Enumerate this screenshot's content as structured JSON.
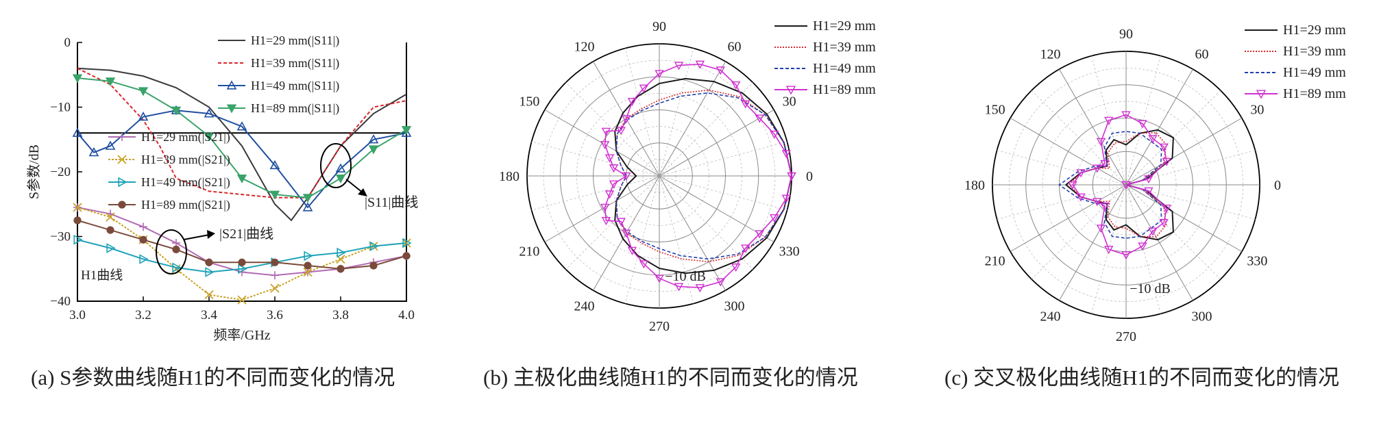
{
  "captions": {
    "a": "(a) S参数曲线随H1的不同而变化的情况",
    "b": "(b) 主极化曲线随H1的不同而变化的情况",
    "c": "(c) 交叉极化曲线随H1的不同而变化的情况"
  },
  "colors": {
    "h29": "#3a3a3a",
    "h39": "#d8262b",
    "h49": "#1f4fa0",
    "h89": "#3aa36a",
    "s21_29": "#b06ab3",
    "s21_39": "#c9a227",
    "s21_49": "#1fa3b8",
    "s21_89": "#7a4a3a",
    "polar89": "#d22fd2"
  },
  "chart_data": [
    {
      "type": "line",
      "xlabel": "频率/GHz",
      "ylabel": "S参数/dB",
      "xlim": [
        3.0,
        4.0
      ],
      "ylim": [
        -40,
        0
      ],
      "xticks": [
        "3.0",
        "3.2",
        "3.4",
        "3.6",
        "3.8",
        "4.0"
      ],
      "yticks": [
        "0",
        "−10",
        "−20",
        "−30",
        "−40"
      ],
      "reference_line": -14,
      "annotations": [
        "|S11|曲线",
        "|S21|曲线",
        "H1曲线"
      ],
      "legend_s11": [
        "H1=29 mm(|S11|)",
        "H1=39 mm(|S11|)",
        "H1=49 mm(|S11|)",
        "H1=89 mm(|S11|)"
      ],
      "legend_s21": [
        "H1=29 mm(|S21|)",
        "H1=39 mm(|S21|)",
        "H1=49 mm(|S21|)",
        "H1=89 mm(|S21|)"
      ],
      "series": [
        {
          "name": "H1=29 mm(|S11|)",
          "color": "#3a3a3a",
          "marker": "none",
          "dash": "",
          "x": [
            3.0,
            3.1,
            3.2,
            3.3,
            3.4,
            3.5,
            3.6,
            3.65,
            3.7,
            3.8,
            3.9,
            4.0
          ],
          "y": [
            -4,
            -4.3,
            -5.2,
            -7,
            -10,
            -16,
            -25,
            -27.5,
            -24,
            -16,
            -11,
            -8
          ]
        },
        {
          "name": "H1=39 mm(|S11|)",
          "color": "#d8262b",
          "marker": "none",
          "dash": "5 3",
          "x": [
            3.0,
            3.1,
            3.2,
            3.25,
            3.3,
            3.4,
            3.5,
            3.6,
            3.7,
            3.8,
            3.9,
            4.0
          ],
          "y": [
            -4,
            -6.5,
            -12,
            -16,
            -21,
            -23,
            -23.5,
            -24,
            -24,
            -16,
            -10,
            -9
          ]
        },
        {
          "name": "H1=49 mm(|S11|)",
          "color": "#1f4fa0",
          "marker": "triangle-up",
          "dash": "",
          "x": [
            3.0,
            3.05,
            3.1,
            3.2,
            3.3,
            3.4,
            3.5,
            3.6,
            3.7,
            3.8,
            3.9,
            4.0
          ],
          "y": [
            -14,
            -17,
            -16,
            -11.5,
            -10.5,
            -11,
            -13,
            -19,
            -25.5,
            -19.5,
            -15,
            -14
          ]
        },
        {
          "name": "H1=89 mm(|S11|)",
          "color": "#3aa36a",
          "marker": "triangle-down",
          "dash": "",
          "x": [
            3.0,
            3.1,
            3.2,
            3.3,
            3.4,
            3.5,
            3.6,
            3.7,
            3.8,
            3.9,
            4.0
          ],
          "y": [
            -5.5,
            -6,
            -7.5,
            -10.5,
            -14.5,
            -21,
            -23.5,
            -24,
            -21,
            -16.5,
            -13.5
          ]
        },
        {
          "name": "H1=29 mm(|S21|)",
          "color": "#b06ab3",
          "marker": "plus",
          "dash": "",
          "x": [
            3.0,
            3.1,
            3.2,
            3.3,
            3.4,
            3.5,
            3.6,
            3.7,
            3.8,
            3.9,
            4.0
          ],
          "y": [
            -25.5,
            -26.5,
            -28.5,
            -31,
            -34,
            -35.5,
            -36,
            -35.5,
            -35,
            -34,
            -33
          ]
        },
        {
          "name": "H1=39 mm(|S21|)",
          "color": "#c9a227",
          "marker": "cross",
          "dash": "3 2",
          "x": [
            3.0,
            3.1,
            3.2,
            3.3,
            3.4,
            3.5,
            3.6,
            3.7,
            3.8,
            3.9,
            4.0
          ],
          "y": [
            -25.5,
            -27,
            -30.5,
            -35,
            -39,
            -39.8,
            -38,
            -35.5,
            -33.5,
            -31.5,
            -31
          ]
        },
        {
          "name": "H1=49 mm(|S21|)",
          "color": "#1fa3b8",
          "marker": "triangle-right",
          "dash": "",
          "x": [
            3.0,
            3.1,
            3.2,
            3.3,
            3.4,
            3.5,
            3.6,
            3.7,
            3.8,
            3.9,
            4.0
          ],
          "y": [
            -30.5,
            -31.8,
            -33.5,
            -34.8,
            -35.5,
            -35,
            -34,
            -33,
            -32.5,
            -31.5,
            -31
          ]
        },
        {
          "name": "H1=89 mm(|S21|)",
          "color": "#7a4a3a",
          "marker": "circle",
          "dash": "",
          "x": [
            3.0,
            3.1,
            3.2,
            3.3,
            3.4,
            3.5,
            3.6,
            3.7,
            3.8,
            3.9,
            4.0
          ],
          "y": [
            -27.5,
            -29,
            -30.5,
            -32,
            -34,
            -34,
            -34,
            -34.5,
            -35,
            -34.5,
            -33
          ]
        }
      ]
    },
    {
      "type": "polar",
      "rlim": [
        -40,
        0
      ],
      "angle_ticks": [
        "0",
        "30",
        "60",
        "90",
        "120",
        "150",
        "180",
        "210",
        "240",
        "270",
        "300",
        "330"
      ],
      "rlabel": "−10 dB",
      "legend": [
        "H1=29 mm",
        "H1=39 mm",
        "H1=49 mm",
        "H1=89 mm"
      ],
      "series": [
        {
          "name": "H1=29 mm",
          "color": "#1a1a1a",
          "dash": "",
          "marker": "none",
          "theta": [
            0,
            15,
            30,
            45,
            60,
            75,
            90,
            105,
            120,
            135,
            150,
            165,
            180,
            195,
            210,
            225,
            240,
            255,
            270,
            285,
            300,
            315,
            330,
            345,
            360
          ],
          "r": [
            0,
            -1,
            -2.5,
            -4.5,
            -7,
            -9.5,
            -12,
            -15,
            -18,
            -21,
            -25,
            -30,
            -33,
            -30,
            -25,
            -21,
            -18,
            -15,
            -12,
            -9.5,
            -7,
            -4.5,
            -2.5,
            -1,
            0
          ]
        },
        {
          "name": "H1=39 mm",
          "color": "#d8262b",
          "dash": "2 2",
          "marker": "none",
          "theta": [
            0,
            15,
            30,
            45,
            60,
            75,
            90,
            105,
            120,
            135,
            150,
            165,
            180,
            195,
            210,
            225,
            240,
            255,
            270,
            285,
            300,
            315,
            330,
            345,
            360
          ],
          "r": [
            0,
            -1,
            -3,
            -6,
            -10,
            -14,
            -17,
            -19,
            -20,
            -22,
            -25,
            -28,
            -30,
            -28,
            -25,
            -22,
            -20,
            -19,
            -17,
            -14,
            -10,
            -6,
            -3,
            -1,
            0
          ]
        },
        {
          "name": "H1=49 mm",
          "color": "#1f3fb0",
          "dash": "5 3",
          "marker": "none",
          "theta": [
            0,
            15,
            30,
            45,
            60,
            75,
            90,
            105,
            120,
            135,
            150,
            165,
            180,
            195,
            210,
            225,
            240,
            255,
            270,
            285,
            300,
            315,
            330,
            345,
            360
          ],
          "r": [
            0,
            -1,
            -3,
            -6.5,
            -11,
            -15,
            -18,
            -19.5,
            -20.5,
            -22,
            -25,
            -28,
            -30,
            -28,
            -25,
            -22,
            -20.5,
            -19.5,
            -18,
            -15,
            -11,
            -6.5,
            -3,
            -1,
            0
          ]
        },
        {
          "name": "H1=89 mm",
          "color": "#d22fd2",
          "dash": "",
          "marker": "triangle-down",
          "theta": [
            0,
            10,
            20,
            30,
            40,
            50,
            60,
            70,
            80,
            90,
            100,
            110,
            120,
            130,
            140,
            150,
            160,
            170,
            180,
            190,
            200,
            210,
            220,
            230,
            240,
            250,
            260,
            270,
            280,
            290,
            300,
            310,
            320,
            330,
            340,
            350,
            360
          ],
          "r": [
            0,
            -1,
            -3,
            -5,
            -6,
            -4,
            -3,
            -4,
            -6,
            -9,
            -13,
            -16,
            -20,
            -22,
            -19,
            -21,
            -24,
            -26,
            -30,
            -26,
            -24,
            -21,
            -19,
            -22,
            -20,
            -16,
            -13,
            -9,
            -6,
            -4,
            -3,
            -4,
            -6,
            -5,
            -3,
            -1,
            0
          ]
        }
      ]
    },
    {
      "type": "polar",
      "rlim": [
        -40,
        0
      ],
      "angle_ticks": [
        "0",
        "30",
        "60",
        "90",
        "120",
        "150",
        "180",
        "210",
        "240",
        "270",
        "300",
        "330"
      ],
      "rlabel": "−10 dB",
      "legend": [
        "H1=29 mm",
        "H1=39 mm",
        "H1=49 mm",
        "H1=89 mm"
      ],
      "series": [
        {
          "name": "H1=29 mm",
          "color": "#1a1a1a",
          "dash": "",
          "marker": "none",
          "theta": [
            0,
            15,
            30,
            45,
            60,
            75,
            90,
            105,
            120,
            135,
            150,
            165,
            180,
            195,
            210,
            225,
            240,
            255,
            270,
            285,
            300,
            315,
            330,
            345,
            360
          ],
          "r": [
            -40,
            -34,
            -24,
            -20,
            -21,
            -24,
            -28,
            -26,
            -28,
            -32,
            -30,
            -26,
            -22,
            -26,
            -30,
            -32,
            -28,
            -26,
            -28,
            -24,
            -21,
            -20,
            -24,
            -34,
            -40
          ]
        },
        {
          "name": "H1=39 mm",
          "color": "#d8262b",
          "dash": "2 2",
          "marker": "none",
          "theta": [
            0,
            15,
            30,
            45,
            60,
            75,
            90,
            105,
            120,
            135,
            150,
            165,
            180,
            195,
            210,
            225,
            240,
            255,
            270,
            285,
            300,
            315,
            330,
            345,
            360
          ],
          "r": [
            -40,
            -35,
            -27,
            -23,
            -22,
            -24,
            -27,
            -27,
            -29,
            -33,
            -30,
            -26,
            -23,
            -26,
            -30,
            -33,
            -29,
            -27,
            -27,
            -24,
            -22,
            -23,
            -27,
            -35,
            -40
          ]
        },
        {
          "name": "H1=49 mm",
          "color": "#1f3fb0",
          "dash": "5 3",
          "marker": "none",
          "theta": [
            0,
            15,
            30,
            45,
            60,
            75,
            90,
            105,
            120,
            135,
            150,
            165,
            180,
            195,
            210,
            225,
            240,
            255,
            270,
            285,
            300,
            315,
            330,
            345,
            360
          ],
          "r": [
            -40,
            -35,
            -28,
            -25,
            -25,
            -24,
            -24,
            -24,
            -27,
            -32,
            -29,
            -25,
            -20,
            -25,
            -29,
            -32,
            -27,
            -24,
            -24,
            -24,
            -25,
            -25,
            -28,
            -35,
            -40
          ]
        },
        {
          "name": "H1=89 mm",
          "color": "#d22fd2",
          "dash": "",
          "marker": "triangle-down",
          "theta": [
            0,
            15,
            30,
            45,
            60,
            75,
            90,
            105,
            120,
            135,
            150,
            165,
            180,
            195,
            210,
            225,
            240,
            255,
            270,
            285,
            300,
            315,
            330,
            345,
            360
          ],
          "r": [
            -40,
            -33,
            -26,
            -24,
            -24,
            -21,
            -19,
            -20,
            -25,
            -31,
            -30,
            -26,
            -24,
            -26,
            -30,
            -31,
            -25,
            -20,
            -19,
            -21,
            -24,
            -24,
            -26,
            -33,
            -40
          ]
        }
      ]
    }
  ]
}
